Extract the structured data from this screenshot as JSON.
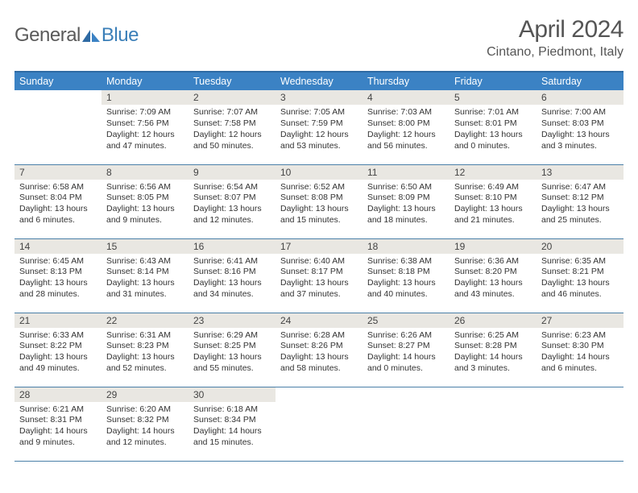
{
  "logo": {
    "word1": "General",
    "word2": "Blue"
  },
  "title": "April 2024",
  "location": "Cintano, Piedmont, Italy",
  "weekdays": [
    "Sunday",
    "Monday",
    "Tuesday",
    "Wednesday",
    "Thursday",
    "Friday",
    "Saturday"
  ],
  "colors": {
    "header_bg": "#3b82c4",
    "header_border": "#2e6aa3",
    "row_border": "#4a7fa8",
    "daynum_bg": "#e9e7e2",
    "text": "#333333",
    "title": "#555555"
  },
  "typography": {
    "title_fontsize": 30,
    "location_fontsize": 16,
    "weekday_fontsize": 12.5,
    "daynum_fontsize": 12,
    "body_fontsize": 10.5
  },
  "grid": [
    [
      {
        "empty": true
      },
      {
        "n": "1",
        "r": "7:09 AM",
        "s": "7:56 PM",
        "d": "12 hours and 47 minutes."
      },
      {
        "n": "2",
        "r": "7:07 AM",
        "s": "7:58 PM",
        "d": "12 hours and 50 minutes."
      },
      {
        "n": "3",
        "r": "7:05 AM",
        "s": "7:59 PM",
        "d": "12 hours and 53 minutes."
      },
      {
        "n": "4",
        "r": "7:03 AM",
        "s": "8:00 PM",
        "d": "12 hours and 56 minutes."
      },
      {
        "n": "5",
        "r": "7:01 AM",
        "s": "8:01 PM",
        "d": "13 hours and 0 minutes."
      },
      {
        "n": "6",
        "r": "7:00 AM",
        "s": "8:03 PM",
        "d": "13 hours and 3 minutes."
      }
    ],
    [
      {
        "n": "7",
        "r": "6:58 AM",
        "s": "8:04 PM",
        "d": "13 hours and 6 minutes."
      },
      {
        "n": "8",
        "r": "6:56 AM",
        "s": "8:05 PM",
        "d": "13 hours and 9 minutes."
      },
      {
        "n": "9",
        "r": "6:54 AM",
        "s": "8:07 PM",
        "d": "13 hours and 12 minutes."
      },
      {
        "n": "10",
        "r": "6:52 AM",
        "s": "8:08 PM",
        "d": "13 hours and 15 minutes."
      },
      {
        "n": "11",
        "r": "6:50 AM",
        "s": "8:09 PM",
        "d": "13 hours and 18 minutes."
      },
      {
        "n": "12",
        "r": "6:49 AM",
        "s": "8:10 PM",
        "d": "13 hours and 21 minutes."
      },
      {
        "n": "13",
        "r": "6:47 AM",
        "s": "8:12 PM",
        "d": "13 hours and 25 minutes."
      }
    ],
    [
      {
        "n": "14",
        "r": "6:45 AM",
        "s": "8:13 PM",
        "d": "13 hours and 28 minutes."
      },
      {
        "n": "15",
        "r": "6:43 AM",
        "s": "8:14 PM",
        "d": "13 hours and 31 minutes."
      },
      {
        "n": "16",
        "r": "6:41 AM",
        "s": "8:16 PM",
        "d": "13 hours and 34 minutes."
      },
      {
        "n": "17",
        "r": "6:40 AM",
        "s": "8:17 PM",
        "d": "13 hours and 37 minutes."
      },
      {
        "n": "18",
        "r": "6:38 AM",
        "s": "8:18 PM",
        "d": "13 hours and 40 minutes."
      },
      {
        "n": "19",
        "r": "6:36 AM",
        "s": "8:20 PM",
        "d": "13 hours and 43 minutes."
      },
      {
        "n": "20",
        "r": "6:35 AM",
        "s": "8:21 PM",
        "d": "13 hours and 46 minutes."
      }
    ],
    [
      {
        "n": "21",
        "r": "6:33 AM",
        "s": "8:22 PM",
        "d": "13 hours and 49 minutes."
      },
      {
        "n": "22",
        "r": "6:31 AM",
        "s": "8:23 PM",
        "d": "13 hours and 52 minutes."
      },
      {
        "n": "23",
        "r": "6:29 AM",
        "s": "8:25 PM",
        "d": "13 hours and 55 minutes."
      },
      {
        "n": "24",
        "r": "6:28 AM",
        "s": "8:26 PM",
        "d": "13 hours and 58 minutes."
      },
      {
        "n": "25",
        "r": "6:26 AM",
        "s": "8:27 PM",
        "d": "14 hours and 0 minutes."
      },
      {
        "n": "26",
        "r": "6:25 AM",
        "s": "8:28 PM",
        "d": "14 hours and 3 minutes."
      },
      {
        "n": "27",
        "r": "6:23 AM",
        "s": "8:30 PM",
        "d": "14 hours and 6 minutes."
      }
    ],
    [
      {
        "n": "28",
        "r": "6:21 AM",
        "s": "8:31 PM",
        "d": "14 hours and 9 minutes."
      },
      {
        "n": "29",
        "r": "6:20 AM",
        "s": "8:32 PM",
        "d": "14 hours and 12 minutes."
      },
      {
        "n": "30",
        "r": "6:18 AM",
        "s": "8:34 PM",
        "d": "14 hours and 15 minutes."
      },
      {
        "empty": true
      },
      {
        "empty": true
      },
      {
        "empty": true
      },
      {
        "empty": true
      }
    ]
  ],
  "labels": {
    "sunrise": "Sunrise:",
    "sunset": "Sunset:",
    "daylight": "Daylight:"
  }
}
